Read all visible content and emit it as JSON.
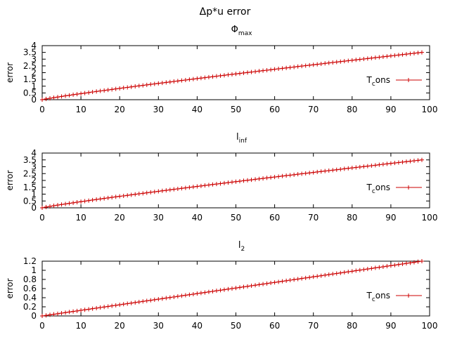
{
  "figure": {
    "title": "Δp*u error"
  },
  "chart_data": [
    {
      "type": "line",
      "title": {
        "main": "Φ",
        "sub": "max"
      },
      "xlabel": "",
      "ylabel": "error",
      "xlim": [
        0,
        100
      ],
      "ylim": [
        0,
        4
      ],
      "xticks": [
        0,
        10,
        20,
        30,
        40,
        50,
        60,
        70,
        80,
        90,
        100
      ],
      "yticks": [
        "0",
        "0.5",
        "1",
        "1.5",
        "2",
        "2.5",
        "3",
        "3.5",
        "4"
      ],
      "legend": "right",
      "grid": false,
      "series": [
        {
          "name": {
            "main": "T",
            "sub": "c",
            "tail": "ons"
          },
          "color": "#cc0000",
          "marker": "plus",
          "x_start": 0,
          "x_end": 98,
          "x_step": 1,
          "y_start": 0.0,
          "y_end": 3.5,
          "curve": 0.9
        }
      ]
    },
    {
      "type": "line",
      "title": {
        "main": "l",
        "sub": "inf"
      },
      "xlabel": "",
      "ylabel": "error",
      "xlim": [
        0,
        100
      ],
      "ylim": [
        0,
        4
      ],
      "xticks": [
        0,
        10,
        20,
        30,
        40,
        50,
        60,
        70,
        80,
        90,
        100
      ],
      "yticks": [
        "0",
        "0.5",
        "1",
        "1.5",
        "2",
        "2.5",
        "3",
        "3.5",
        "4"
      ],
      "legend": "right",
      "grid": false,
      "series": [
        {
          "name": {
            "main": "T",
            "sub": "c",
            "tail": "ons"
          },
          "color": "#cc0000",
          "marker": "plus",
          "x_start": 0,
          "x_end": 98,
          "x_step": 1,
          "y_start": 0.0,
          "y_end": 3.5,
          "curve": 0.9
        }
      ]
    },
    {
      "type": "line",
      "title": {
        "main": "l",
        "sub": "2"
      },
      "xlabel": "",
      "ylabel": "error",
      "xlim": [
        0,
        100
      ],
      "ylim": [
        0,
        1.2
      ],
      "xticks": [
        0,
        10,
        20,
        30,
        40,
        50,
        60,
        70,
        80,
        90,
        100
      ],
      "yticks": [
        "0",
        "0.2",
        "0.4",
        "0.6",
        "0.8",
        "1",
        "1.2"
      ],
      "legend": "right",
      "grid": false,
      "series": [
        {
          "name": {
            "main": "T",
            "sub": "c",
            "tail": "ons"
          },
          "color": "#cc0000",
          "marker": "plus",
          "x_start": 0,
          "x_end": 98,
          "x_step": 1,
          "y_start": 0.0,
          "y_end": 1.2,
          "curve": 1.0
        }
      ]
    }
  ]
}
